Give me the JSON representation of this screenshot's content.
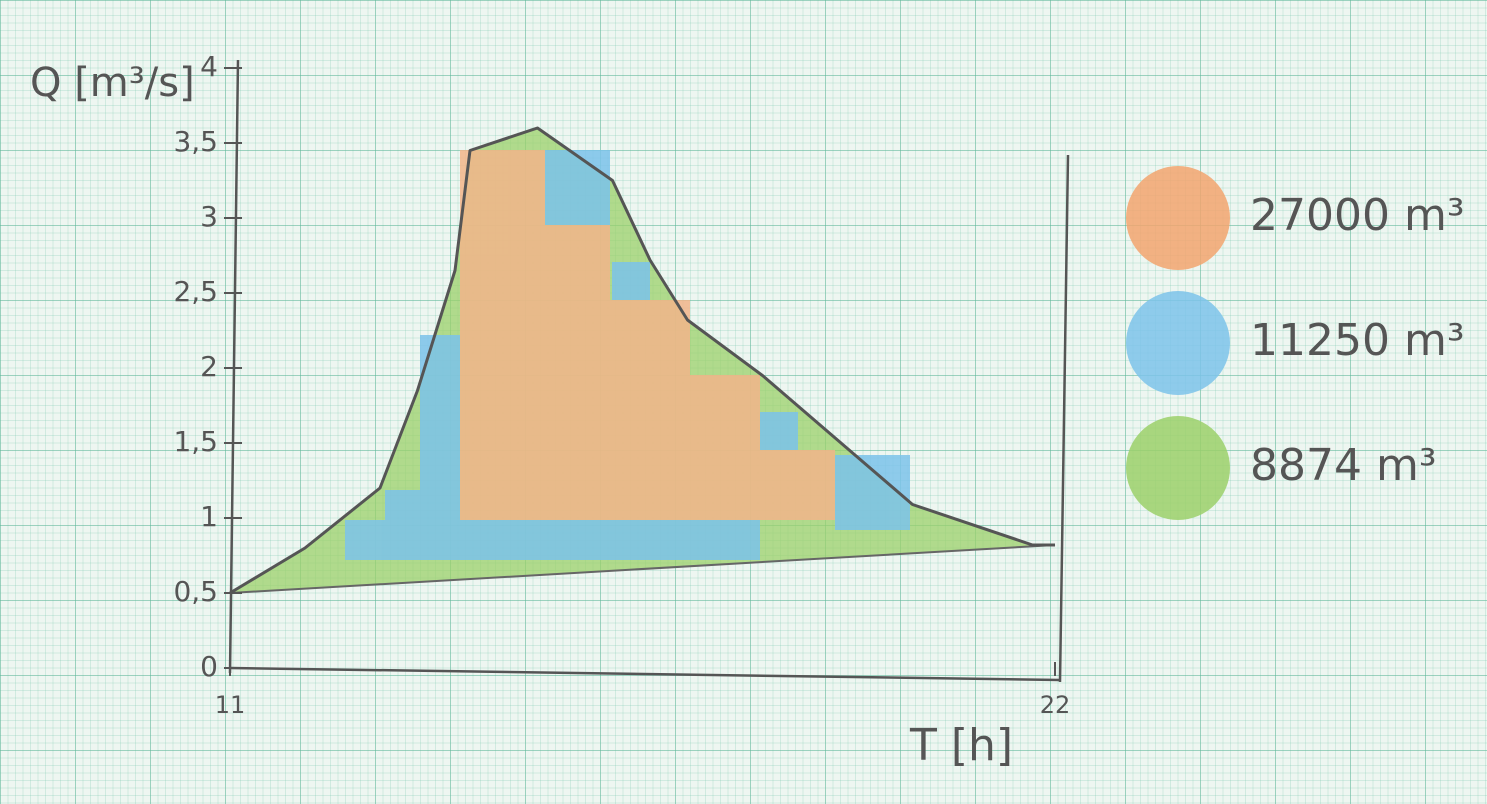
{
  "chart_data": {
    "type": "area",
    "ylabel": "Q [m³/s]",
    "xlabel": "T [h]",
    "x": [
      11,
      12,
      13,
      13.5,
      14,
      14.2,
      15.1,
      16.1,
      16.6,
      17.1,
      18.1,
      19.1,
      20.1,
      21.7,
      22
    ],
    "values": [
      0.5,
      0.8,
      1.2,
      1.85,
      2.65,
      3.45,
      3.6,
      3.25,
      2.72,
      2.32,
      1.95,
      1.52,
      1.09,
      0.82,
      0.82
    ],
    "color": "#9bd06a",
    "baseline": {
      "x": [
        11,
        22
      ],
      "values": [
        0.5,
        0.82
      ]
    },
    "xlim": [
      11,
      22
    ],
    "ylim": [
      0,
      4
    ],
    "xticks": [
      11,
      22
    ],
    "yticks": [
      0,
      {
        "value": 0.5,
        "label": "0,5"
      },
      1,
      {
        "value": 1.5,
        "label": "1,5"
      },
      2,
      {
        "value": 2.5,
        "label": "2,5"
      },
      3,
      {
        "value": 3.5,
        "label": "3,5"
      },
      4
    ],
    "legend": [
      {
        "label": "27000 m³",
        "color": "#f2a56e"
      },
      {
        "label": "11250 m³",
        "color": "#7cc3ea"
      },
      {
        "label": "8874 m³",
        "color": "#9bd06a"
      }
    ]
  }
}
